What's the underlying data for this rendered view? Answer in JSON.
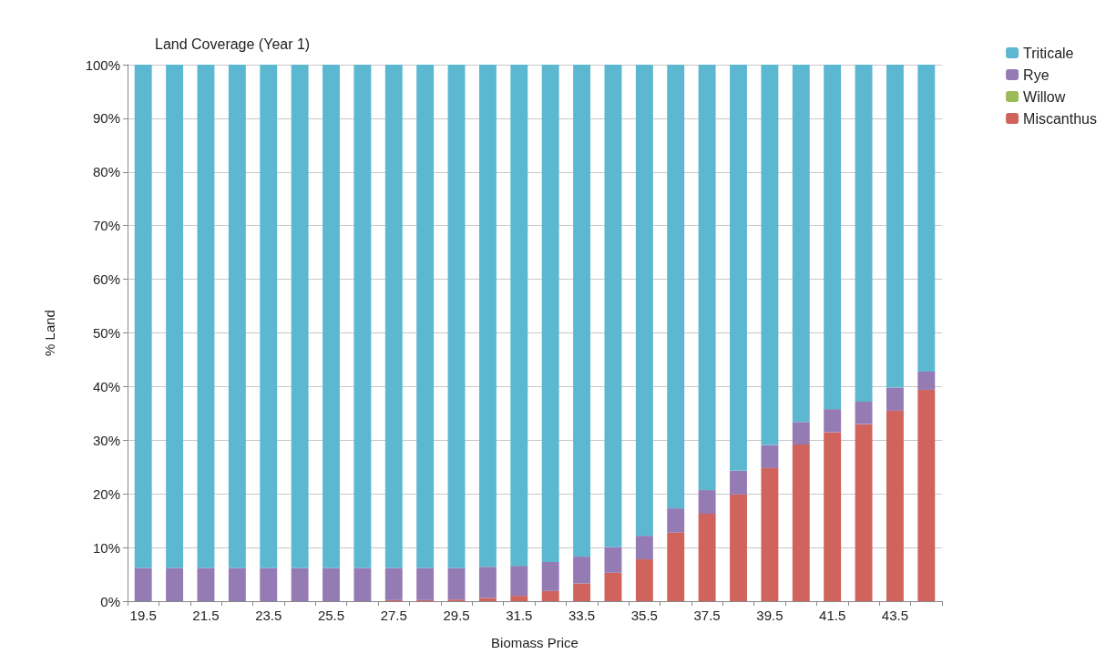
{
  "chart_data": {
    "type": "bar",
    "title": "Land Coverage (Year 1)",
    "xlabel": "Biomass Price",
    "ylabel": "% Land",
    "categories": [
      "19.5",
      null,
      "21.5",
      null,
      "23.5",
      null,
      "25.5",
      null,
      "27.5",
      null,
      "29.5",
      null,
      "31.5",
      null,
      "33.5",
      null,
      "35.5",
      null,
      "37.5",
      null,
      "39.5",
      null,
      "41.5",
      null,
      "43.5",
      null
    ],
    "stacked": true,
    "legend": "top right",
    "grid": "y",
    "ylim": [
      0,
      100
    ],
    "yticks": [
      {
        "value": 0,
        "label": "0%"
      },
      {
        "value": 10,
        "label": "10%"
      },
      {
        "value": 20,
        "label": "20%"
      },
      {
        "value": 30,
        "label": "30%"
      },
      {
        "value": 40,
        "label": "40%"
      },
      {
        "value": 50,
        "label": "50%"
      },
      {
        "value": 60,
        "label": "60%"
      },
      {
        "value": 70,
        "label": "70%"
      },
      {
        "value": 80,
        "label": "80%"
      },
      {
        "value": 90,
        "label": "90%"
      },
      {
        "value": 100,
        "label": "100%"
      }
    ],
    "series": [
      {
        "name": "Miscanthus",
        "color": "#d0645c",
        "values": [
          0,
          0,
          0,
          0,
          0,
          0,
          0,
          0,
          0.2,
          0.2,
          0.3,
          0.6,
          1.0,
          1.9,
          3.3,
          5.3,
          7.8,
          12.8,
          16.3,
          19.9,
          24.8,
          29.2,
          31.5,
          33.0,
          35.5,
          39.4
        ]
      },
      {
        "name": "Willow",
        "color": "#9bbb59",
        "values": [
          0,
          0,
          0,
          0,
          0,
          0,
          0,
          0,
          0,
          0,
          0,
          0,
          0,
          0,
          0,
          0,
          0,
          0,
          0,
          0,
          0,
          0,
          0,
          0,
          0,
          0
        ]
      },
      {
        "name": "Rye",
        "color": "#947bb4",
        "values": [
          6.2,
          6.2,
          6.2,
          6.2,
          6.2,
          6.2,
          6.2,
          6.2,
          6.0,
          6.0,
          5.9,
          5.8,
          5.6,
          5.4,
          5.0,
          4.8,
          4.4,
          4.5,
          4.4,
          4.4,
          4.3,
          4.2,
          4.3,
          4.2,
          4.3,
          3.4
        ]
      },
      {
        "name": "Triticale",
        "color": "#5bb8d0",
        "values": [
          93.8,
          93.8,
          93.8,
          93.8,
          93.8,
          93.8,
          93.8,
          93.8,
          93.8,
          93.8,
          93.8,
          93.6,
          93.4,
          92.7,
          91.7,
          89.9,
          87.8,
          82.7,
          79.3,
          75.7,
          70.9,
          66.6,
          64.2,
          62.8,
          60.2,
          57.2
        ]
      }
    ]
  }
}
